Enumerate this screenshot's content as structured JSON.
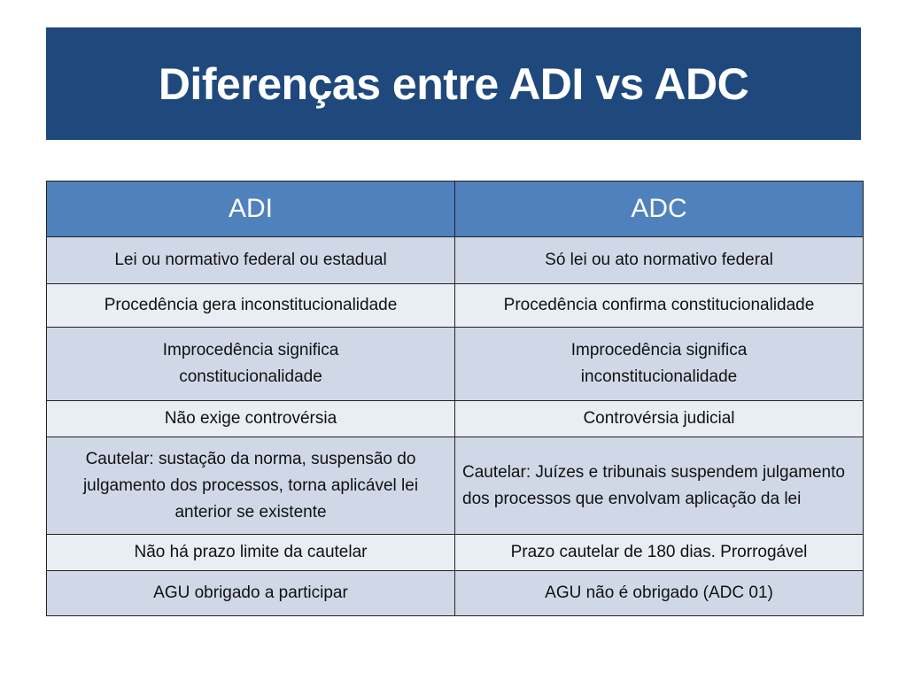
{
  "title": "Diferenças entre ADI vs ADC",
  "table": {
    "headers": [
      "ADI",
      "ADC"
    ],
    "rows": [
      [
        "Lei ou normativo federal ou estadual",
        "Só lei ou ato normativo federal"
      ],
      [
        "Procedência gera inconstitucionalidade",
        "Procedência confirma constitucionalidade"
      ],
      [
        "Improcedência significa constitucionalidade",
        "Improcedência significa inconstitucionalidade"
      ],
      [
        "Não exige controvérsia",
        "Controvérsia judicial"
      ],
      [
        "Cautelar: sustação da norma, suspensão do julgamento dos processos, torna aplicável lei anterior se existente",
        "Cautelar: Juízes e tribunais suspendem julgamento dos processos que envolvam aplicação da lei"
      ],
      [
        "Não há prazo limite da cautelar",
        "Prazo cautelar de 180 dias. Prorrogável"
      ],
      [
        "AGU obrigado a participar",
        "AGU não é obrigado (ADC 01)"
      ]
    ]
  },
  "colors": {
    "title_bg": "#1F497D",
    "header_bg": "#4F81BD",
    "row_dark": "#D0D8E8",
    "row_light": "#E9EDF4"
  }
}
